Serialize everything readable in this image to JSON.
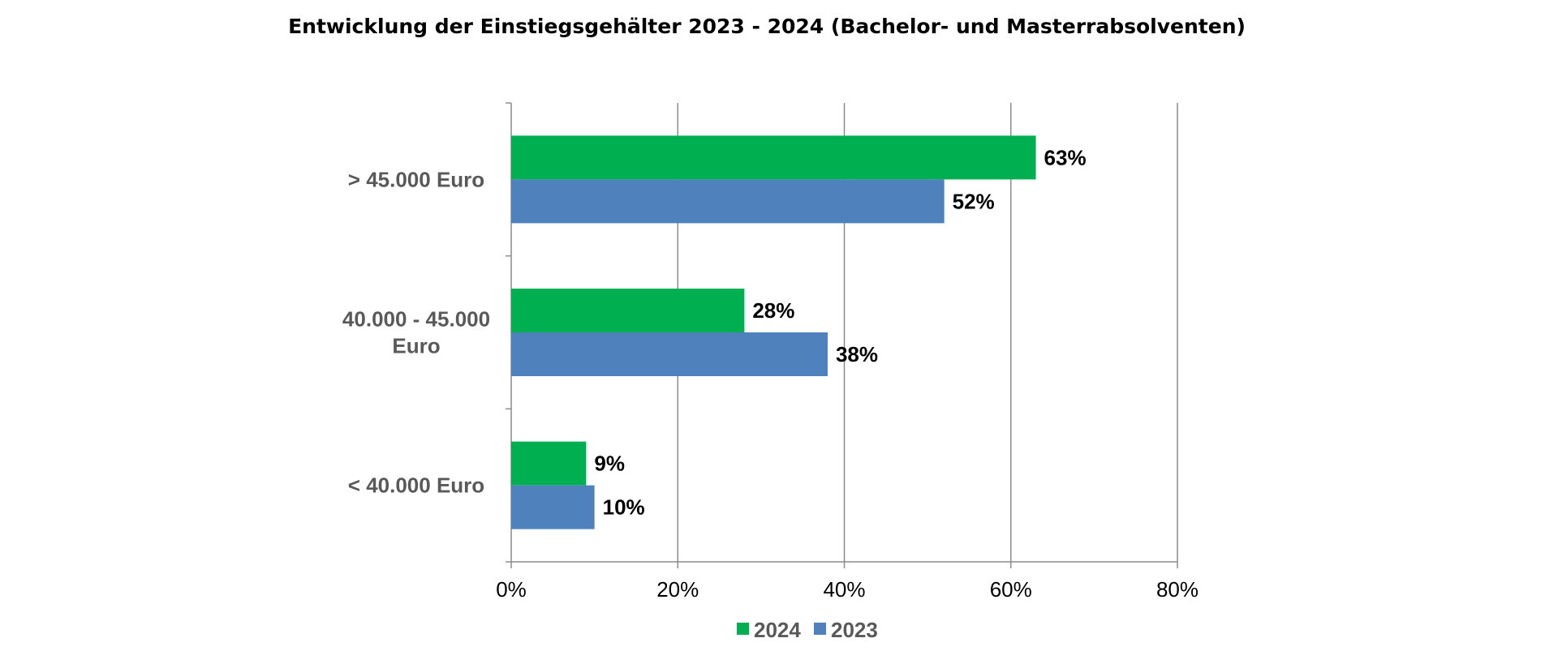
{
  "chart_data": {
    "type": "bar",
    "orientation": "horizontal",
    "title": "Entwicklung der Einstiegsgehälter  2023 - 2024 (Bachelor- und Masterrabsolventen)",
    "categories": [
      "> 45.000 Euro",
      "40.000 - 45.000 Euro",
      "< 40.000 Euro"
    ],
    "category_lines": [
      [
        "> 45.000 Euro"
      ],
      [
        "40.000 - 45.000",
        "Euro"
      ],
      [
        "< 40.000 Euro"
      ]
    ],
    "series": [
      {
        "name": "2024",
        "color": "#00B050",
        "values": [
          63,
          28,
          9
        ],
        "labels": [
          "63%",
          "28%",
          "9%"
        ]
      },
      {
        "name": "2023",
        "color": "#4F81BD",
        "values": [
          52,
          38,
          10
        ],
        "labels": [
          "52%",
          "38%",
          "10%"
        ]
      }
    ],
    "xlim": [
      0,
      80
    ],
    "xticks": [
      0,
      20,
      40,
      60,
      80
    ],
    "xtick_labels": [
      "0%",
      "20%",
      "40%",
      "60%",
      "80%"
    ],
    "grid": true,
    "legend": "bottom"
  }
}
